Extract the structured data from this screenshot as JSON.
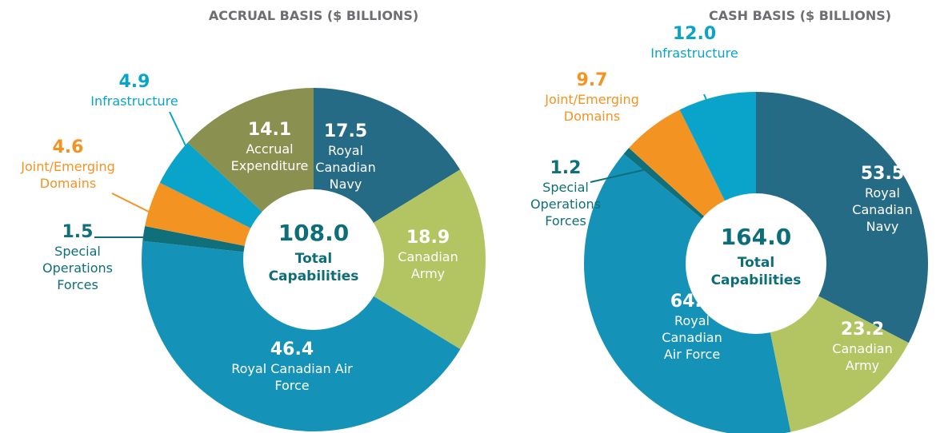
{
  "chart_data": [
    {
      "type": "pie",
      "title": "ACCRUAL BASIS ($ BILLIONS)",
      "categories": [
        "Royal Canadian Navy",
        "Canadian Army",
        "Royal Canadian Air Force",
        "Special Operations Forces",
        "Joint/Emerging Domains",
        "Infrastructure",
        "Accrual Expenditure"
      ],
      "values": [
        17.5,
        18.9,
        46.4,
        1.5,
        4.6,
        4.9,
        14.1
      ],
      "value_labels": [
        "17.5",
        "18.9",
        "46.4",
        "1.5",
        "4.6",
        "4.9",
        "14.1"
      ],
      "colors": [
        "#256b85",
        "#b3c462",
        "#1592b8",
        "#0f6f7a",
        "#f39322",
        "#0aa3c9",
        "#8a9150"
      ],
      "center_value": {
        "value": 108,
        "label": "108.0"
      },
      "center_text": "Total Capabilities"
    },
    {
      "type": "pie",
      "title": "CASH BASIS ($ BILLIONS)",
      "categories": [
        "Royal Canadian Navy",
        "Canadian Army",
        "Royal Canadian Air Force",
        "Special Operations Forces",
        "Joint/Emerging Domains",
        "Infrastructure"
      ],
      "values": [
        53.5,
        23.2,
        64.4,
        1.2,
        9.7,
        12
      ],
      "value_labels": [
        "53.5",
        "23.2",
        "64.4",
        "1.2",
        "9.7",
        "12.0"
      ],
      "colors": [
        "#256b85",
        "#b3c462",
        "#1592b8",
        "#0f6f7a",
        "#f39322",
        "#0aa3c9"
      ],
      "center_value": {
        "value": 164,
        "label": "164.0"
      },
      "center_text": "Total Capabilities"
    }
  ]
}
